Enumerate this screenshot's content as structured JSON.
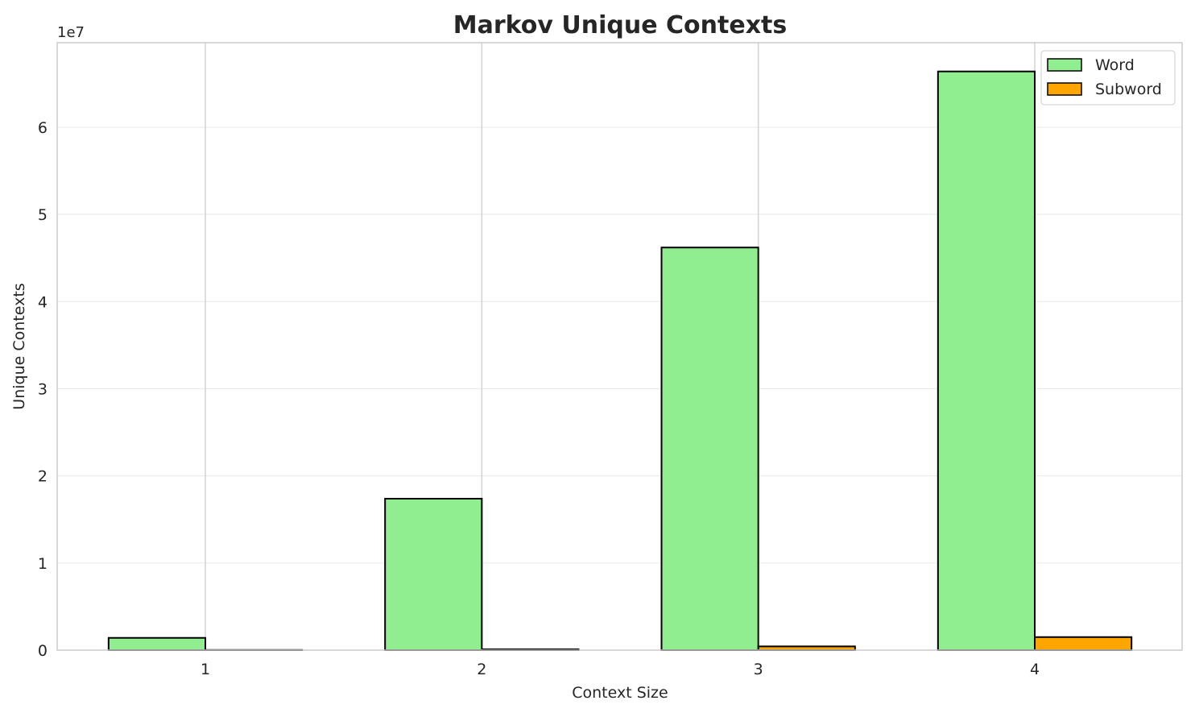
{
  "chart_data": {
    "type": "bar",
    "title": "Markov Unique Contexts",
    "xlabel": "Context Size",
    "ylabel": "Unique Contexts",
    "y_offset_label": "1e7",
    "categories": [
      "1",
      "2",
      "3",
      "4"
    ],
    "series": [
      {
        "name": "Word",
        "color": "#90EE90",
        "values": [
          1410000,
          17380000,
          46200000,
          66400000
        ]
      },
      {
        "name": "Subword",
        "color": "#FFA500",
        "values": [
          20000,
          100000,
          430000,
          1500000
        ]
      }
    ],
    "yticks": [
      0,
      10000000,
      20000000,
      30000000,
      40000000,
      50000000,
      60000000
    ],
    "ytick_labels": [
      "0",
      "1",
      "2",
      "3",
      "4",
      "5",
      "6"
    ],
    "ylim": [
      0,
      69700000
    ],
    "xlim": [
      0.464,
      4.533
    ],
    "grid": true,
    "legend": "top-right"
  }
}
